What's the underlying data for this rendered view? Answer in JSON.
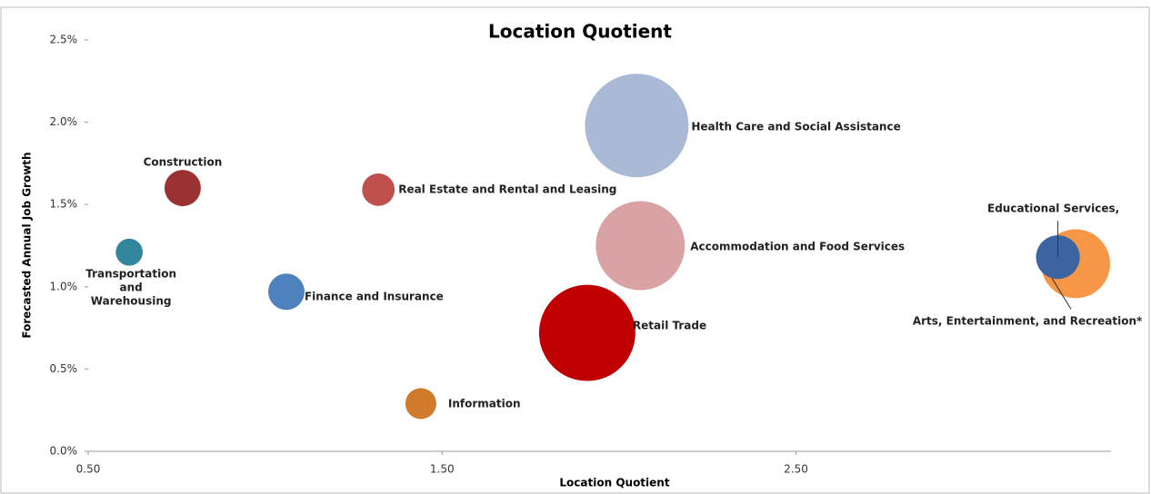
{
  "chart_data": {
    "type": "bubble",
    "title": "Location Quotient",
    "x_label": "Location Quotient",
    "y_label": "Forecasted Annual Job Growth",
    "xlim": [
      0.5,
      3.39
    ],
    "ylim": [
      0,
      2.5
    ],
    "xticks": [
      {
        "value": 0.5,
        "label": "0.50"
      },
      {
        "value": 1.5,
        "label": "1.50"
      },
      {
        "value": 2.5,
        "label": "2.50"
      }
    ],
    "yticks": [
      {
        "value": 0,
        "label": "0.0%"
      },
      {
        "value": 0.5,
        "label": "0.5%"
      },
      {
        "value": 1,
        "label": "1.0%"
      },
      {
        "value": 1.5,
        "label": "1.5%"
      },
      {
        "value": 2,
        "label": "2.0%"
      },
      {
        "value": 2.5,
        "label": "2.5%"
      }
    ],
    "series": [
      {
        "name": "Construction",
        "color": "#9b3232",
        "x": [
          0.767
        ],
        "values": [
          1.6
        ],
        "sizes": [
          40
        ]
      },
      {
        "name": "Real Estate and Rental and Leasing",
        "color": "#c0504d",
        "x": [
          1.32
        ],
        "values": [
          1.59
        ],
        "sizes": [
          32
        ]
      },
      {
        "name": "Transportation and Warehousing",
        "color": "#31859c",
        "x": [
          0.616
        ],
        "values": [
          1.21
        ],
        "sizes": [
          22
        ]
      },
      {
        "name": "Finance and Insurance",
        "color": "#4f81bd",
        "x": [
          1.06
        ],
        "values": [
          0.97
        ],
        "sizes": [
          40
        ]
      },
      {
        "name": "Information",
        "color": "#d07a2e",
        "x": [
          1.44
        ],
        "values": [
          0.29
        ],
        "sizes": [
          29
        ]
      },
      {
        "name": "Retail Trade",
        "color": "#c00000",
        "x": [
          1.91
        ],
        "values": [
          0.72
        ],
        "sizes": [
          281
        ]
      },
      {
        "name": "Accommodation and Food Services",
        "color": "#d9a3a6",
        "x": [
          2.06
        ],
        "values": [
          1.25
        ],
        "sizes": [
          240
        ]
      },
      {
        "name": "Health Care and Social Assistance",
        "color": "#aab9d6",
        "x": [
          2.05
        ],
        "values": [
          1.98
        ],
        "sizes": [
          325
        ]
      },
      {
        "name": "Arts, Entertainment, and Recreation*",
        "color": "#f79646",
        "x": [
          3.29
        ],
        "values": [
          1.14
        ],
        "sizes": [
          144
        ]
      },
      {
        "name": "Educational Services,",
        "color": "#3c64a0",
        "x": [
          3.24
        ],
        "values": [
          1.18
        ],
        "sizes": [
          58
        ]
      }
    ]
  }
}
